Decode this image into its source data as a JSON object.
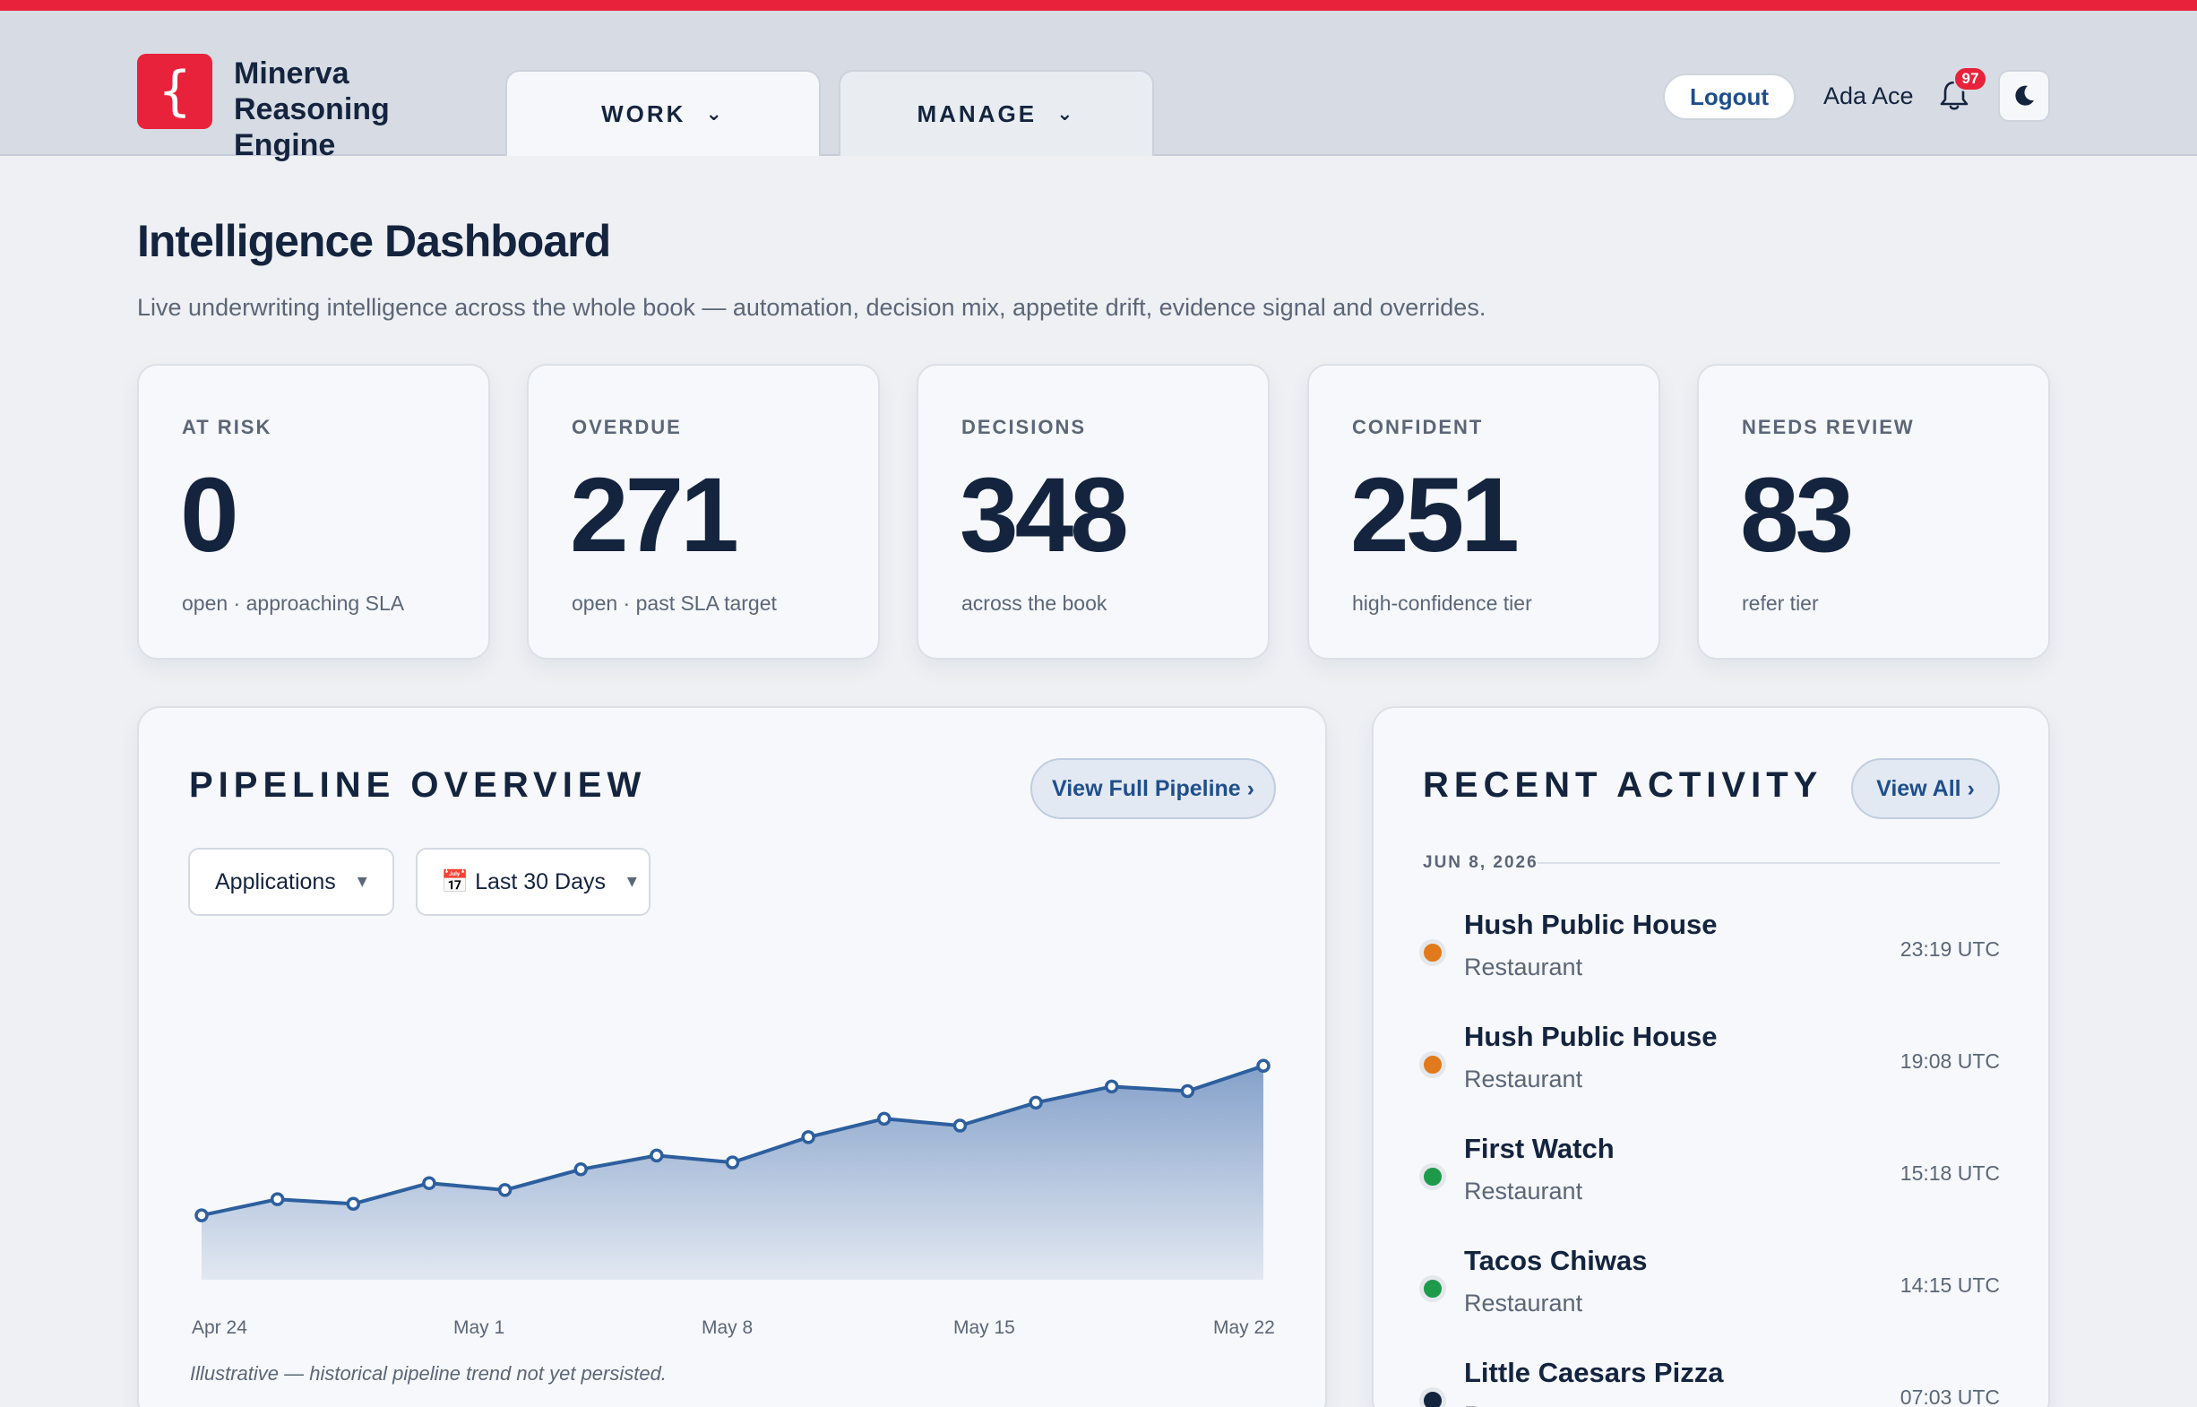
{
  "app": {
    "logo_glyph": "{ }",
    "name_line1": "Minerva",
    "name_line2": "Reasoning Engine",
    "accent_color": "#e8223a"
  },
  "nav": {
    "tabs": [
      {
        "label": "WORK",
        "active": true
      },
      {
        "label": "MANAGE",
        "active": false
      }
    ],
    "chevron_icon": "chevron-down-icon"
  },
  "header": {
    "logout_label": "Logout",
    "user_name": "Ada Ace",
    "notification_count": "97",
    "bell_icon": "bell-icon",
    "theme_icon": "moon-icon"
  },
  "page": {
    "title": "Intelligence Dashboard",
    "subtitle": "Live underwriting intelligence across the whole book — automation, decision mix, appetite drift, evidence signal and overrides."
  },
  "stats": [
    {
      "label": "AT RISK",
      "value": "0",
      "desc": "open · approaching SLA"
    },
    {
      "label": "OVERDUE",
      "value": "271",
      "desc": "open · past SLA target"
    },
    {
      "label": "DECISIONS",
      "value": "348",
      "desc": "across the book"
    },
    {
      "label": "CONFIDENT",
      "value": "251",
      "desc": "high-confidence tier"
    },
    {
      "label": "NEEDS REVIEW",
      "value": "83",
      "desc": "refer tier"
    }
  ],
  "pipeline": {
    "title": "PIPELINE OVERVIEW",
    "view_button": "View Full Pipeline ›",
    "metric_select": "Applications",
    "range_select": "📅 Last 30 Days",
    "footnote": "Illustrative — historical pipeline trend not yet persisted."
  },
  "chart_data": {
    "type": "area",
    "title": "",
    "xlabel": "",
    "ylabel": "",
    "tick_labels": [
      "Apr 24",
      "May 1",
      "May 8",
      "May 15",
      "May 22"
    ],
    "x": [
      "Apr 24",
      "Apr 26",
      "Apr 28",
      "Apr 30",
      "May 2",
      "May 4",
      "May 6",
      "May 8",
      "May 10",
      "May 12",
      "May 14",
      "May 16",
      "May 18",
      "May 20",
      "May 22"
    ],
    "values": [
      28,
      35,
      33,
      42,
      39,
      48,
      54,
      51,
      62,
      70,
      67,
      77,
      84,
      82,
      93
    ],
    "ylim": [
      0,
      120
    ],
    "grid": false,
    "line_color": "#2d5f9e"
  },
  "activity": {
    "title": "RECENT ACTIVITY",
    "view_all": "View All ›",
    "date": "JUN 8, 2026",
    "items": [
      {
        "name": "Hush Public House",
        "type": "Restaurant",
        "time": "23:19 UTC",
        "color": "#e07a1b"
      },
      {
        "name": "Hush Public House",
        "type": "Restaurant",
        "time": "19:08 UTC",
        "color": "#e07a1b"
      },
      {
        "name": "First Watch",
        "type": "Restaurant",
        "time": "15:18 UTC",
        "color": "#1f9a4a"
      },
      {
        "name": "Tacos Chiwas",
        "type": "Restaurant",
        "time": "14:15 UTC",
        "color": "#1f9a4a"
      },
      {
        "name": "Little Caesars Pizza",
        "type": "Restaurant",
        "time": "07:03 UTC",
        "color": "#14243e"
      }
    ]
  }
}
